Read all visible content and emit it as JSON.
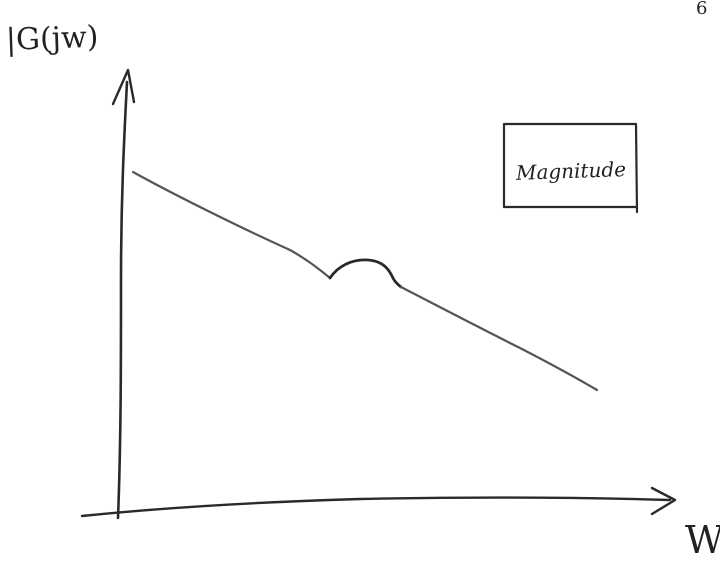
{
  "texts": {
    "y_axis_label": "|G(jw)",
    "x_axis_label": "W",
    "legend_label": "Magnitude",
    "corner_mark": "6"
  },
  "colors": {
    "ink": "#2a2a2a",
    "curve": "#555555",
    "background": "#ffffff"
  }
}
